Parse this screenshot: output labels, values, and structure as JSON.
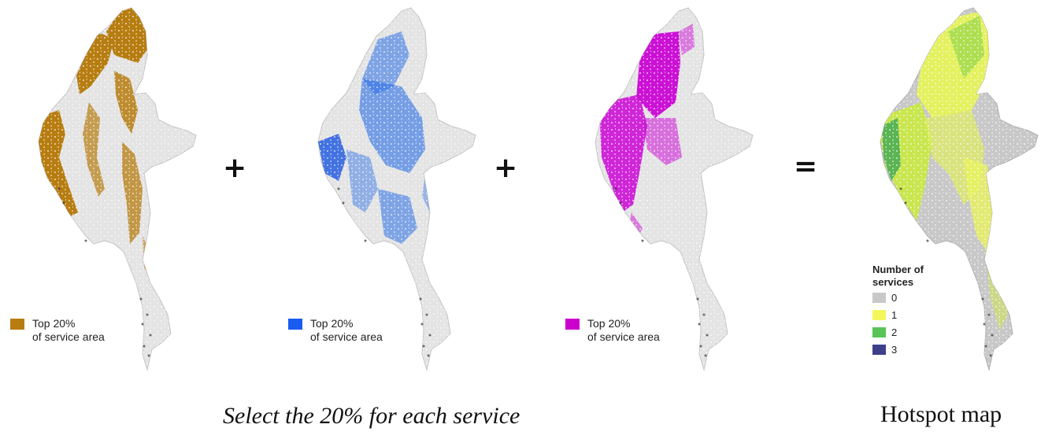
{
  "colors": {
    "base_gray": "#e3e3e3",
    "outline": "#b8b8b8",
    "provisioning_brown": "#b77d11",
    "water_blue": "#2b6fe6",
    "carbon_magenta": "#cc11d6",
    "hotspot_zero": "#c8c8c8",
    "hotspot_one": "#f2f75a",
    "hotspot_two": "#55c155",
    "hotspot_three": "#3c3f8c"
  },
  "panels": [
    {
      "service": "brown",
      "swatch_color": "#b77d11",
      "legend": {
        "line1": "Top 20%",
        "line2": "of service area"
      }
    },
    {
      "service": "blue",
      "swatch_color": "#1a5cf0",
      "legend": {
        "line1": "Top 20%",
        "line2": "of service area"
      }
    },
    {
      "service": "magenta",
      "swatch_color": "#cc00cc",
      "legend": {
        "line1": "Top 20%",
        "line2": "of service area"
      }
    }
  ],
  "operators": {
    "plus": "+",
    "equals": "="
  },
  "hotspot_legend": {
    "title": "Number of services",
    "items": [
      {
        "label": "0",
        "color": "#c8c8c8"
      },
      {
        "label": "1",
        "color": "#f3f75c"
      },
      {
        "label": "2",
        "color": "#58c458"
      },
      {
        "label": "3",
        "color": "#3d3f8a"
      }
    ]
  },
  "captions": {
    "select": "Select the 20% for each service",
    "hotspot": "Hotspot map"
  }
}
